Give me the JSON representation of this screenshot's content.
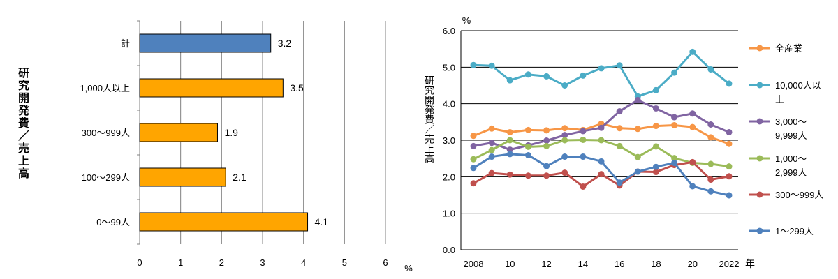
{
  "chart_data": [
    {
      "type": "bar",
      "orientation": "horizontal",
      "ylabel": "研究開発費／売上高",
      "x_unit": "%",
      "xlim": [
        0,
        6
      ],
      "x_ticks": [
        "0",
        "1",
        "2",
        "3",
        "4",
        "5",
        "6"
      ],
      "categories": [
        "計",
        "1,000人以上",
        "300～999人",
        "100～299人",
        "0～99人"
      ],
      "values": [
        3.2,
        3.5,
        1.9,
        2.1,
        4.1
      ],
      "value_labels": [
        "3.2",
        "3.5",
        "1.9",
        "2.1",
        "4.1"
      ],
      "colors": [
        "#4f81bd",
        "#ffa500",
        "#ffa500",
        "#ffa500",
        "#ffa500"
      ],
      "grid": true
    },
    {
      "type": "line",
      "ylabel": "研究開発費／売上高",
      "y_unit": "%",
      "x_unit": "年",
      "ylim": [
        0,
        6
      ],
      "y_ticks": [
        "0.0",
        "1.0",
        "2.0",
        "3.0",
        "4.0",
        "5.0",
        "6.0"
      ],
      "x_ticks": [
        "2008",
        "10",
        "12",
        "14",
        "16",
        "18",
        "20",
        "2022"
      ],
      "x": [
        2008,
        2009,
        2010,
        2011,
        2012,
        2013,
        2014,
        2015,
        2016,
        2017,
        2018,
        2019,
        2020,
        2021,
        2022
      ],
      "grid": true,
      "legend": "right",
      "series": [
        {
          "name": "全産業",
          "legend_lines": [
            "全産業"
          ],
          "color": "#f79646",
          "values": [
            3.12,
            3.32,
            3.22,
            3.28,
            3.27,
            3.33,
            3.28,
            3.45,
            3.33,
            3.31,
            3.39,
            3.41,
            3.36,
            3.08,
            2.9
          ]
        },
        {
          "name": "10,000人以上",
          "legend_lines": [
            "10,000人以",
            "上"
          ],
          "color": "#4bacc6",
          "values": [
            5.06,
            5.04,
            4.64,
            4.8,
            4.75,
            4.5,
            4.77,
            4.97,
            5.05,
            4.2,
            4.37,
            4.85,
            5.42,
            4.94,
            4.55
          ]
        },
        {
          "name": "3,000～9,999人",
          "legend_lines": [
            "3,000～",
            "9,999人"
          ],
          "color": "#8064a2",
          "values": [
            2.84,
            2.93,
            2.74,
            2.86,
            2.99,
            3.14,
            3.25,
            3.34,
            3.79,
            4.1,
            3.87,
            3.63,
            3.73,
            3.43,
            3.22
          ]
        },
        {
          "name": "1,000～2,999人",
          "legend_lines": [
            "1,000～",
            "2,999人"
          ],
          "color": "#9bbb59",
          "values": [
            2.48,
            2.73,
            3.0,
            2.82,
            2.84,
            3.0,
            3.01,
            3.0,
            2.84,
            2.54,
            2.83,
            2.51,
            2.38,
            2.35,
            2.28
          ]
        },
        {
          "name": "300～999人",
          "legend_lines": [
            "300～999人"
          ],
          "color": "#c0504d",
          "values": [
            1.82,
            2.1,
            2.06,
            2.03,
            2.03,
            2.11,
            1.73,
            2.07,
            1.76,
            2.14,
            2.13,
            2.32,
            2.4,
            1.92,
            2.01
          ]
        },
        {
          "name": "1～299人",
          "legend_lines": [
            "1～299人"
          ],
          "color": "#4f81bd",
          "values": [
            2.24,
            2.55,
            2.62,
            2.59,
            2.29,
            2.55,
            2.55,
            2.42,
            1.84,
            2.14,
            2.27,
            2.38,
            1.74,
            1.6,
            1.49
          ]
        }
      ]
    }
  ]
}
